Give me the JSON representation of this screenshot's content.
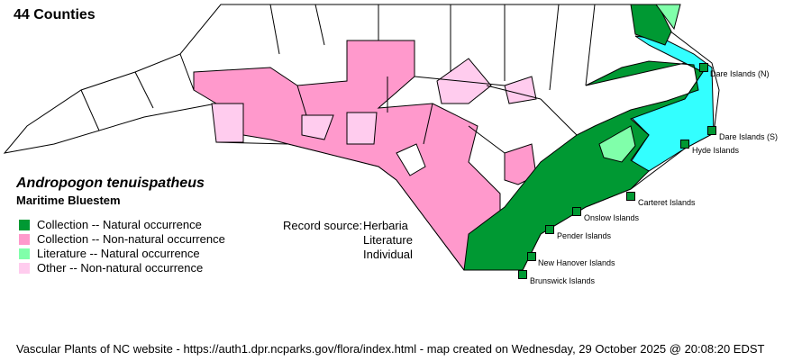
{
  "count_label": "44 Counties",
  "species": {
    "scientific": "Andropogon tenuispatheus",
    "common": "Maritime Bluestem"
  },
  "legend": [
    {
      "label": "Collection -- Natural occurrence",
      "color": "#009933"
    },
    {
      "label": "Collection -- Non-natural occurrence",
      "color": "#ff99cc"
    },
    {
      "label": "Literature -- Natural occurrence",
      "color": "#80ffaa"
    },
    {
      "label": "Other -- Non-natural occurrence",
      "color": "#ffccee"
    }
  ],
  "record_source": {
    "label": "Record source:",
    "values": [
      "Herbaria",
      "Literature",
      "Individual"
    ]
  },
  "islands": [
    "Dare Islands (N)",
    "Dare Islands (S)",
    "Hyde Islands",
    "Carteret Islands",
    "Onslow Islands",
    "Pender Islands",
    "New Hanover Islands",
    "Brunswick Islands"
  ],
  "colors": {
    "water": "#33ffff",
    "county_line": "#000000",
    "background": "#ffffff"
  },
  "footer": "Vascular Plants of NC website - https://auth1.dpr.ncparks.gov/flora/index.html - map created on Wednesday, 29 October 2025 @ 20:08:20 EDST"
}
